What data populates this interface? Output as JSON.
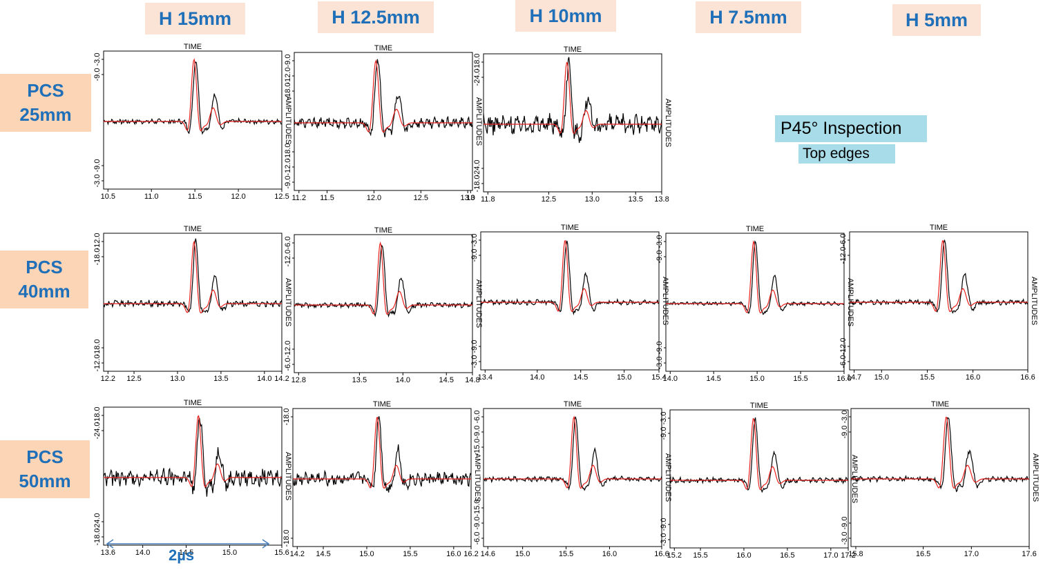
{
  "column_headers": [
    "H 15mm",
    "H 12.5mm",
    "H 10mm",
    "H 7.5mm",
    "H 5mm"
  ],
  "row_headers": [
    {
      "line1": "PCS",
      "line2": "25mm"
    },
    {
      "line1": "PCS",
      "line2": "40mm"
    },
    {
      "line1": "PCS",
      "line2": "50mm"
    }
  ],
  "info": {
    "title": "P45° Inspection",
    "subtitle": "Top edges"
  },
  "scale_bar": {
    "label": "2µs"
  },
  "colors": {
    "header_bg": "#fbe4d5",
    "row_bg": "#fbd5b5",
    "label_blue": "#1f6fb9",
    "info_bg": "#a9dce9",
    "measured": "#000000",
    "simulated": "#e8201c"
  },
  "chart_data": [
    {
      "type": "line",
      "title": "TIME",
      "ylabel": "AMPLITUDES",
      "xlim": [
        10.45,
        12.5
      ],
      "xticks": [
        "10.5",
        "11.0",
        "11.5",
        "12.0",
        "12.5"
      ],
      "xtick_values": [
        10.5,
        11.0,
        11.5,
        12.0,
        12.5
      ],
      "yticks_top": [
        "-3.0",
        "-9.0"
      ],
      "yticks_bottom": [
        "-9.0",
        "-3.0"
      ],
      "peak": 11.5,
      "amp_m": 1.0,
      "amp_s": 1.0,
      "noise": 0.03,
      "lead": 0.6
    },
    {
      "type": "line",
      "title": "TIME",
      "ylabel": "AMPLITUDES",
      "xlim": [
        11.15,
        13.05
      ],
      "xticks": [
        "11.2",
        "11.5",
        "12.0",
        "12.5",
        "13.0",
        "13"
      ],
      "xtick_values": [
        11.2,
        11.5,
        12.0,
        12.5,
        13.0,
        13.03
      ],
      "yticks_top": [
        "-9.0",
        "-12.0",
        "-18.0"
      ],
      "yticks_bottom": [
        "-18.0",
        "-12.0",
        "-9.0"
      ],
      "peak": 12.03,
      "amp_m": 1.0,
      "amp_s": 1.0,
      "noise": 0.06,
      "lead": 0.5
    },
    {
      "type": "line",
      "title": "TIME",
      "ylabel": "AMPLITUDES",
      "xlim": [
        11.75,
        13.8
      ],
      "xticks": [
        "11.8",
        "12.5",
        "13.0",
        "13.5",
        "13.8"
      ],
      "xtick_values": [
        11.8,
        12.5,
        13.0,
        13.5,
        13.8
      ],
      "yticks_top": [
        "-18.0",
        "-24.0"
      ],
      "yticks_bottom": [
        "-24.0",
        "-18.0"
      ],
      "peak": 12.72,
      "amp_m": 1.0,
      "amp_s": 1.0,
      "noise": 0.12,
      "lead": 0.7
    },
    {
      "type": "line",
      "title": "TIME",
      "ylabel": "AMPLITUDES",
      "xlim": [
        12.15,
        14.2
      ],
      "xticks": [
        "12.2",
        "12.5",
        "13.0",
        "13.5",
        "14.0",
        "14.2"
      ],
      "xtick_values": [
        12.2,
        12.5,
        13.0,
        13.5,
        14.0,
        14.2
      ],
      "yticks_top": [
        "-12.0",
        "-18.0"
      ],
      "yticks_bottom": [
        "-18.0",
        "-12.0"
      ],
      "peak": 13.2,
      "amp_m": 1.0,
      "amp_s": 1.0,
      "noise": 0.04,
      "lead": 0.6
    },
    {
      "type": "line",
      "title": "TIME",
      "ylabel": "AMPLITUDES",
      "xlim": [
        12.75,
        14.8
      ],
      "xticks": [
        "12.8",
        "13.5",
        "14.0",
        "14.5",
        "14.8"
      ],
      "xtick_values": [
        12.8,
        13.5,
        14.0,
        14.5,
        14.8
      ],
      "yticks_top": [
        "-6.0",
        "-12.0"
      ],
      "yticks_bottom": [
        "-12.0",
        "-6.0"
      ],
      "peak": 13.75,
      "amp_m": 1.0,
      "amp_s": 1.0,
      "noise": 0.03,
      "lead": 0.6
    },
    {
      "type": "line",
      "title": "TIME",
      "ylabel": "AMPLITUDES",
      "xlim": [
        13.35,
        15.4
      ],
      "xticks": [
        "13.4",
        "14.0",
        "14.5",
        "15.0",
        "15.4"
      ],
      "xtick_values": [
        13.4,
        14.0,
        14.5,
        15.0,
        15.4
      ],
      "yticks_top": [
        "-3.0",
        "-9.0"
      ],
      "yticks_bottom": [
        "-9.0",
        "-3.0"
      ],
      "peak": 14.33,
      "amp_m": 1.0,
      "amp_s": 1.0,
      "noise": 0.03,
      "lead": 0.6
    },
    {
      "type": "line",
      "title": "TIME",
      "ylabel": "AMPLITUDES",
      "xlim": [
        13.95,
        16.0
      ],
      "xticks": [
        "14.0",
        "14.5",
        "15.0",
        "15.5",
        "16.0"
      ],
      "xtick_values": [
        14.0,
        14.5,
        15.0,
        15.5,
        16.0
      ],
      "yticks_top": [
        "-3.0",
        "-9.0"
      ],
      "yticks_bottom": [
        "-9.0",
        "-3.0"
      ],
      "peak": 14.97,
      "amp_m": 1.0,
      "amp_s": 1.0,
      "noise": 0.02,
      "lead": 0.6
    },
    {
      "type": "line",
      "title": "TIME",
      "ylabel": "AMPLITUDES",
      "xlim": [
        14.65,
        16.6
      ],
      "xticks": [
        "14.7",
        "15.0",
        "15.5",
        "16.0",
        "16.6"
      ],
      "xtick_values": [
        14.7,
        15.0,
        15.5,
        16.0,
        16.6
      ],
      "yticks_top": [
        "-6.0",
        "-12.0"
      ],
      "yticks_bottom": [
        "-12.0",
        "-6.0"
      ],
      "peak": 15.68,
      "amp_m": 1.0,
      "amp_s": 1.0,
      "noise": 0.03,
      "lead": 0.6
    },
    {
      "type": "line",
      "title": "TIME",
      "ylabel": "AMPLITUDES",
      "xlim": [
        13.55,
        15.6
      ],
      "xticks": [
        "13.6",
        "14.0",
        "14.5",
        "15.0",
        "15.6"
      ],
      "xtick_values": [
        13.6,
        14.0,
        14.5,
        15.0,
        15.6
      ],
      "yticks_top": [
        "-18.0",
        "-24.0"
      ],
      "yticks_bottom": [
        "-24.0",
        "-18.0"
      ],
      "peak": 14.65,
      "amp_m": 1.0,
      "amp_s": 1.0,
      "noise": 0.1,
      "lead": 0.7
    },
    {
      "type": "line",
      "title": "TIME",
      "ylabel": "AMPLITUDES",
      "xlim": [
        14.15,
        16.2
      ],
      "xticks": [
        "14.2",
        "14.5",
        "15.0",
        "15.5",
        "16.0",
        "16.2"
      ],
      "xtick_values": [
        14.2,
        14.5,
        15.0,
        15.5,
        16.0,
        16.2
      ],
      "yticks_top": [
        "-18.0"
      ],
      "yticks_bottom": [
        "-18.0"
      ],
      "peak": 15.13,
      "amp_m": 1.0,
      "amp_s": 1.0,
      "noise": 0.08,
      "lead": 0.6
    },
    {
      "type": "line",
      "title": "TIME",
      "ylabel": "AMPLITUDES",
      "xlim": [
        14.55,
        16.6
      ],
      "xticks": [
        "14.6",
        "15.0",
        "15.5",
        "16.0",
        "16.6"
      ],
      "xtick_values": [
        14.6,
        15.0,
        15.5,
        16.0,
        16.6
      ],
      "yticks_top": [
        "-6.0",
        "-9.0",
        "-15.0"
      ],
      "yticks_bottom": [
        "-15.0",
        "-9.0",
        "-6.0"
      ],
      "peak": 15.6,
      "amp_m": 1.0,
      "amp_s": 1.0,
      "noise": 0.03,
      "lead": 0.6
    },
    {
      "type": "line",
      "title": "TIME",
      "ylabel": "AMPLITUDES",
      "xlim": [
        15.15,
        17.2
      ],
      "xticks": [
        "15.2",
        "15.5",
        "16.0",
        "16.5",
        "17.0",
        "17.2"
      ],
      "xtick_values": [
        15.2,
        15.5,
        16.0,
        16.5,
        17.0,
        17.2
      ],
      "yticks_top": [
        "-3.0",
        "-9.0"
      ],
      "yticks_bottom": [
        "-9.0",
        "-3.0"
      ],
      "peak": 16.12,
      "amp_m": 1.0,
      "amp_s": 1.0,
      "noise": 0.03,
      "lead": 0.6
    },
    {
      "type": "line",
      "title": "TIME",
      "ylabel": "AMPLITUDES",
      "xlim": [
        15.75,
        17.6
      ],
      "xticks": [
        "15.8",
        "16.5",
        "17.0",
        "17.6"
      ],
      "xtick_values": [
        15.8,
        16.5,
        17.0,
        17.6
      ],
      "yticks_top": [
        "-3.0",
        "-9.0"
      ],
      "yticks_bottom": [
        "-9.0",
        "-3.0"
      ],
      "peak": 16.75,
      "amp_m": 1.0,
      "amp_s": 1.0,
      "noise": 0.03,
      "lead": 0.6
    }
  ]
}
